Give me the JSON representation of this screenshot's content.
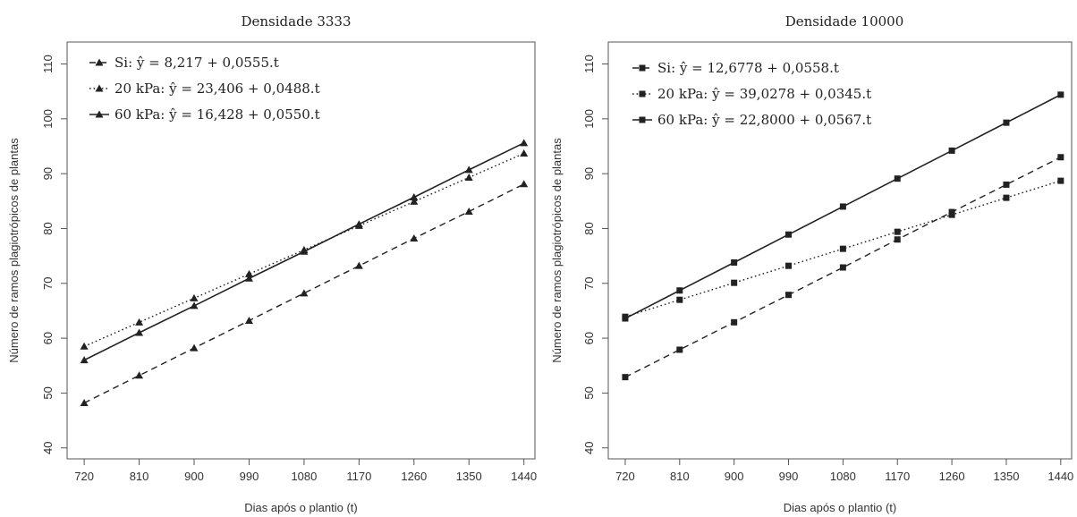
{
  "chart_data": [
    {
      "type": "line",
      "title": "Densidade 3333",
      "xlabel": "Dias após o plantio (t)",
      "ylabel": "Número de ramos plagiotrópicos de plantas",
      "x": [
        720,
        810,
        900,
        990,
        1080,
        1170,
        1260,
        1350,
        1440
      ],
      "x_tick_labels": [
        "720",
        "810",
        "900",
        "990",
        "1080",
        "1170",
        "1260",
        "1350",
        "1440"
      ],
      "y_ticks": [
        40,
        50,
        60,
        70,
        80,
        90,
        100,
        110
      ],
      "y_tick_labels": [
        "40",
        "50",
        "60",
        "70",
        "80",
        "90",
        "100",
        "110"
      ],
      "xlim": [
        692,
        1458
      ],
      "ylim": [
        38,
        114
      ],
      "marker": "triangle",
      "legend_position": "top-left",
      "series": [
        {
          "name": "Si: ŷ = 8,217 + 0,0555.t",
          "label_prefix": "Si: ",
          "equation": "ŷ = 8,217 + 0,0555.t",
          "intercept": 8.217,
          "slope": 0.0555,
          "linestyle": "dashed",
          "values": [
            48.2,
            53.2,
            58.2,
            63.2,
            68.2,
            73.2,
            78.2,
            83.1,
            88.1
          ]
        },
        {
          "name": "20 kPa: ŷ = 23,406 + 0,0488.t",
          "label_prefix": "20 kPa: ",
          "equation": "ŷ = 23,406 + 0,0488.t",
          "intercept": 23.406,
          "slope": 0.0488,
          "linestyle": "dotted",
          "values": [
            58.5,
            62.9,
            67.3,
            71.7,
            76.1,
            80.5,
            84.9,
            89.3,
            93.7
          ]
        },
        {
          "name": "60 kPa: ŷ = 16,428 + 0,0550.t",
          "label_prefix": "60 kPa: ",
          "equation": "ŷ = 16,428 + 0,0550.t",
          "intercept": 16.428,
          "slope": 0.055,
          "linestyle": "solid",
          "values": [
            56.0,
            61.0,
            65.9,
            70.9,
            75.8,
            80.8,
            85.7,
            90.7,
            95.6
          ]
        }
      ],
      "grid": false
    },
    {
      "type": "line",
      "title": "Densidade 10000",
      "xlabel": "Dias após o plantio (t)",
      "ylabel": "Número de ramos plagiotrópicos de plantas",
      "x": [
        720,
        810,
        900,
        990,
        1080,
        1170,
        1260,
        1350,
        1440
      ],
      "x_tick_labels": [
        "720",
        "810",
        "900",
        "990",
        "1080",
        "1170",
        "1260",
        "1350",
        "1440"
      ],
      "y_ticks": [
        40,
        50,
        60,
        70,
        80,
        90,
        100,
        110
      ],
      "y_tick_labels": [
        "40",
        "50",
        "60",
        "70",
        "80",
        "90",
        "100",
        "110"
      ],
      "xlim": [
        692,
        1458
      ],
      "ylim": [
        38,
        114
      ],
      "marker": "square",
      "legend_position": "top-left",
      "series": [
        {
          "name": "Si: ŷ = 12,6778 + 0,0558.t",
          "label_prefix": "Si: ",
          "equation": "ŷ = 12,6778 + 0,0558.t",
          "intercept": 12.6778,
          "slope": 0.0558,
          "linestyle": "dashed",
          "values": [
            52.9,
            57.9,
            62.9,
            67.9,
            72.9,
            78.0,
            83.0,
            88.0,
            93.0
          ]
        },
        {
          "name": "20 kPa: ŷ = 39,0278 + 0,0345.t",
          "label_prefix": "20 kPa: ",
          "equation": "ŷ = 39,0278 + 0,0345.t",
          "intercept": 39.0278,
          "slope": 0.0345,
          "linestyle": "dotted",
          "values": [
            63.9,
            67.0,
            70.1,
            73.2,
            76.3,
            79.4,
            82.5,
            85.6,
            88.7
          ]
        },
        {
          "name": "60 kPa: ŷ = 22,8000 + 0,0567.t",
          "label_prefix": "60 kPa: ",
          "equation": "ŷ = 22,8000 + 0,0567.t",
          "intercept": 22.8,
          "slope": 0.0567,
          "linestyle": "solid",
          "values": [
            63.6,
            68.7,
            73.8,
            78.9,
            84.0,
            89.1,
            94.2,
            99.3,
            104.4
          ]
        }
      ],
      "grid": false
    }
  ]
}
